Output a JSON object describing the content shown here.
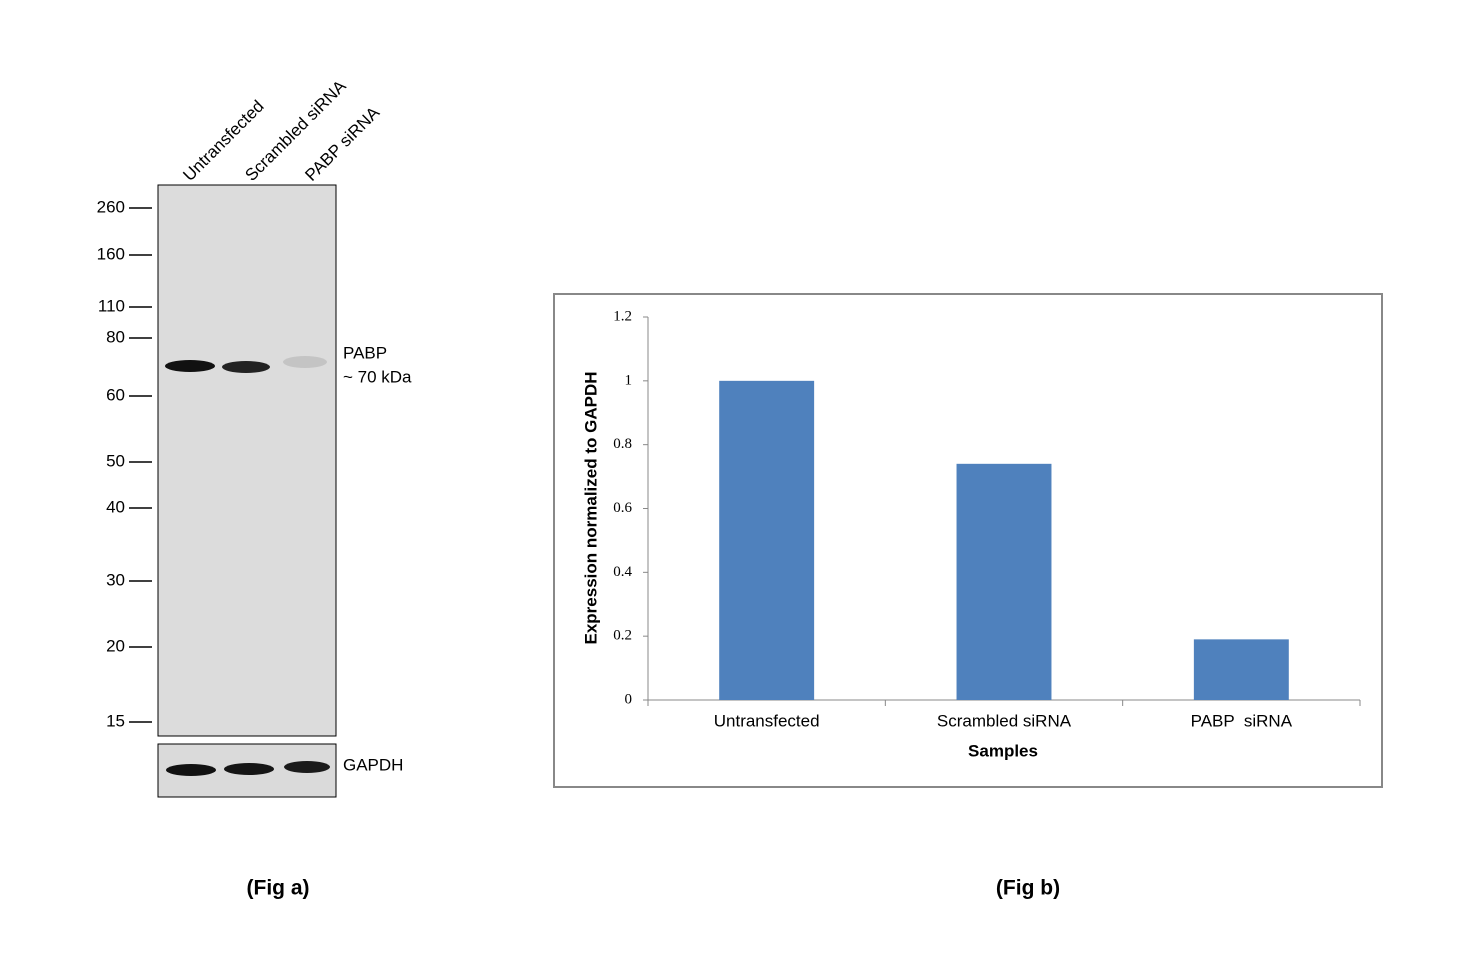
{
  "figure_a": {
    "lanes": [
      "Untransfected",
      "Scrambled siRNA",
      "PABP siRNA"
    ],
    "markers": [
      260,
      160,
      110,
      80,
      60,
      50,
      40,
      30,
      20,
      15
    ],
    "band_labels": [
      "PABP",
      "~ 70 kDa"
    ],
    "loading_control": "GAPDH",
    "caption": "(Fig a)"
  },
  "chart_data": {
    "type": "bar",
    "categories": [
      "Untransfected",
      "Scrambled siRNA",
      "PABP  siRNA"
    ],
    "values": [
      1,
      0.74,
      0.19
    ],
    "color": "#4f81bd",
    "ylim": [
      0,
      1.2
    ],
    "yticks": [
      0,
      0.2,
      0.4,
      0.6,
      0.8,
      1,
      1.2
    ],
    "ylabel": "Expression normalized to GAPDH",
    "xlabel": "Samples"
  },
  "figure_b_caption": "(Fig b)"
}
